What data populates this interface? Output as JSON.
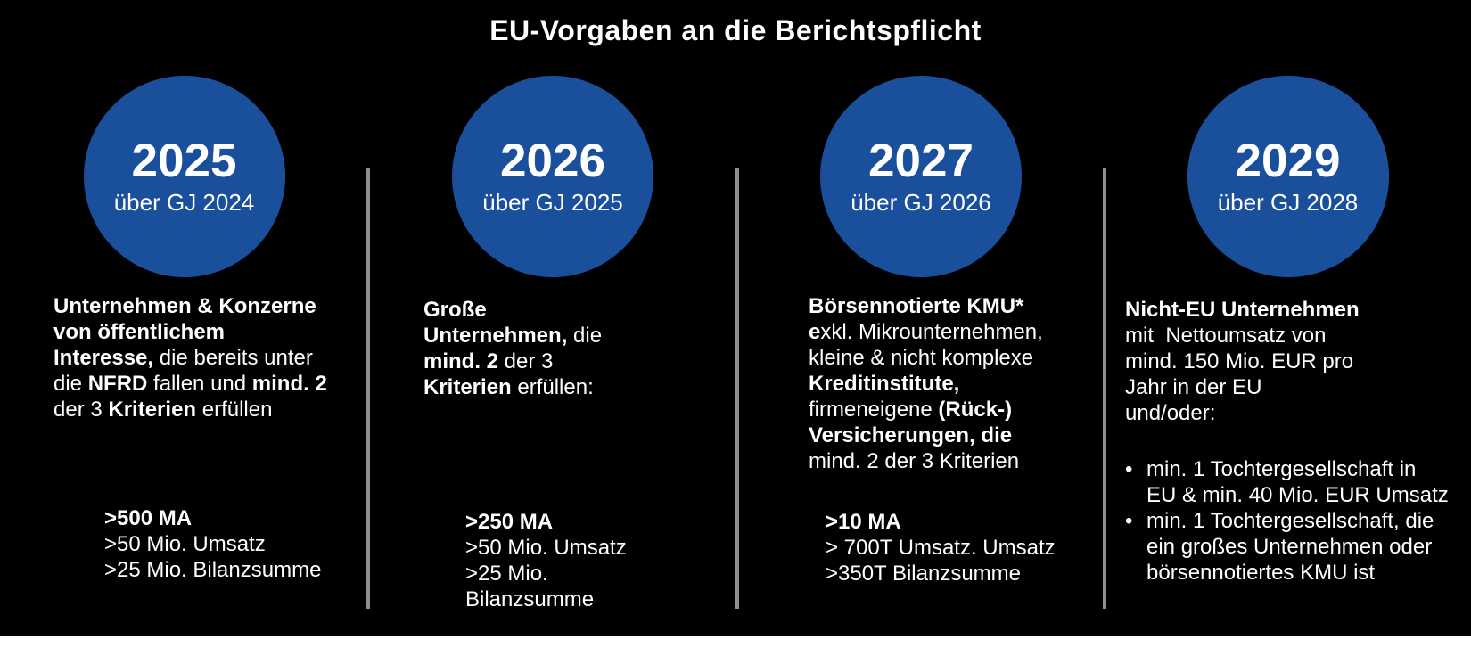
{
  "title": "EU-Vorgaben an die Berichtspflicht",
  "bullet_char": "•",
  "colors": {
    "background": "#000000",
    "circle_blue": "#1A4F9C",
    "divider_gray": "#8F8F8F",
    "text_white": "#FFFFFF",
    "bottom_strip": "#FFFFFF"
  },
  "columns": [
    {
      "year": "2025",
      "subtitle": "über GJ 2024",
      "description": [
        {
          "runs": [
            {
              "t": "Unternehmen & Konzerne",
              "b": true
            }
          ]
        },
        {
          "runs": [
            {
              "t": "von öffentlichem",
              "b": true
            }
          ]
        },
        {
          "runs": [
            {
              "t": "Interesse,",
              "b": true
            },
            {
              "t": " die bereits unter",
              "b": false
            }
          ]
        },
        {
          "runs": [
            {
              "t": "die ",
              "b": false
            },
            {
              "t": "NFRD",
              "b": true
            },
            {
              "t": " fallen und ",
              "b": false
            },
            {
              "t": "mind. 2",
              "b": true
            }
          ]
        },
        {
          "runs": [
            {
              "t": "der 3 ",
              "b": false
            },
            {
              "t": "Kriterien",
              "b": true
            },
            {
              "t": " erfüllen",
              "b": false
            }
          ]
        }
      ],
      "criteria": [
        {
          "runs": [
            {
              "t": ">500 MA",
              "b": true
            }
          ]
        },
        {
          "runs": [
            {
              "t": ">50 Mio. Umsatz",
              "b": false
            }
          ]
        },
        {
          "runs": [
            {
              "t": ">25 Mio. Bilanzsumme",
              "b": false
            }
          ]
        }
      ]
    },
    {
      "year": "2026",
      "subtitle": "über GJ 2025",
      "description": [
        {
          "runs": [
            {
              "t": "Große",
              "b": true
            }
          ]
        },
        {
          "runs": [
            {
              "t": "Unternehmen,",
              "b": true
            },
            {
              "t": " die",
              "b": false
            }
          ]
        },
        {
          "runs": [
            {
              "t": "mind. 2",
              "b": true
            },
            {
              "t": " der 3",
              "b": false
            }
          ]
        },
        {
          "runs": [
            {
              "t": "Kriterien",
              "b": true
            },
            {
              "t": " erfüllen:",
              "b": false
            }
          ]
        }
      ],
      "criteria": [
        {
          "runs": [
            {
              "t": ">250 MA",
              "b": true
            }
          ]
        },
        {
          "runs": [
            {
              "t": ">50 Mio. Umsatz",
              "b": false
            }
          ]
        },
        {
          "runs": [
            {
              "t": ">25 Mio.",
              "b": false
            }
          ]
        },
        {
          "runs": [
            {
              "t": "Bilanzsumme",
              "b": false
            }
          ]
        }
      ]
    },
    {
      "year": "2027",
      "subtitle": "über GJ 2026",
      "description": [
        {
          "runs": [
            {
              "t": "Börsennotierte KMU*",
              "b": true
            }
          ]
        },
        {
          "runs": [
            {
              "t": "e",
              "b": true
            },
            {
              "t": "xkl. Mikrounternehmen,",
              "b": false
            }
          ]
        },
        {
          "runs": [
            {
              "t": "kleine & nicht komplexe",
              "b": false
            }
          ]
        },
        {
          "runs": [
            {
              "t": "Kreditinstitute,",
              "b": true
            }
          ]
        },
        {
          "runs": [
            {
              "t": "firmeneigene ",
              "b": false
            },
            {
              "t": "(Rück-)",
              "b": true
            }
          ]
        },
        {
          "runs": [
            {
              "t": "Versicherungen, die",
              "b": true
            }
          ]
        },
        {
          "runs": [
            {
              "t": "mind. 2 der 3 Kriterien",
              "b": false
            }
          ]
        }
      ],
      "criteria": [
        {
          "runs": [
            {
              "t": ">10 MA",
              "b": true
            }
          ]
        },
        {
          "runs": [
            {
              "t": "> 700T Umsatz. Umsatz",
              "b": false
            }
          ]
        },
        {
          "runs": [
            {
              "t": ">350T Bilanzsumme",
              "b": false
            }
          ]
        }
      ]
    },
    {
      "year": "2029",
      "subtitle": "über GJ 2028",
      "description": [
        {
          "runs": [
            {
              "t": "Nicht-EU Unternehmen",
              "b": true
            }
          ]
        },
        {
          "runs": [
            {
              "t": "mit  Nettoumsatz von",
              "b": false
            }
          ]
        },
        {
          "runs": [
            {
              "t": "mind. 150 Mio. EUR pro",
              "b": false
            }
          ]
        },
        {
          "runs": [
            {
              "t": "Jahr in der EU",
              "b": false
            }
          ]
        },
        {
          "runs": [
            {
              "t": "und/oder:",
              "b": false
            }
          ]
        }
      ],
      "bullets": [
        {
          "lines": [
            "min. 1 Tochtergesellschaft in",
            "EU & min. 40 Mio. EUR Umsatz"
          ]
        },
        {
          "lines": [
            "min. 1 Tochtergesellschaft, die",
            "ein großes Unternehmen oder",
            "börsennotiertes KMU ist"
          ]
        }
      ]
    }
  ]
}
